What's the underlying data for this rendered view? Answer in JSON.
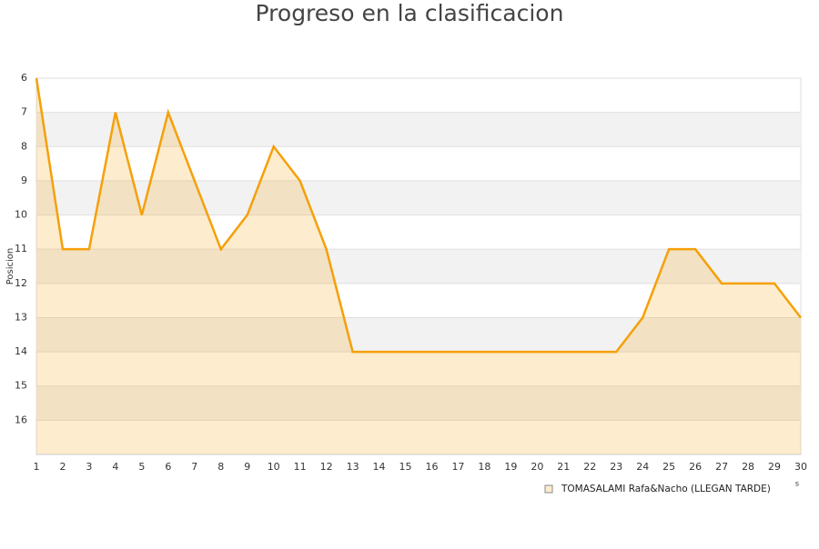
{
  "chart_data": {
    "type": "area-line",
    "title": "Progreso en la clasificacion",
    "y_label": "Posicion",
    "x_label": "s",
    "x": [
      1,
      2,
      3,
      4,
      5,
      6,
      7,
      8,
      9,
      10,
      11,
      12,
      13,
      14,
      15,
      16,
      17,
      18,
      19,
      20,
      21,
      22,
      23,
      24,
      25,
      26,
      27,
      28,
      29,
      30
    ],
    "series": [
      {
        "name": "TOMASALAMI Rafa&Nacho (LLEGAN TARDE)",
        "color": "#f5a00a",
        "values": [
          6,
          11,
          11,
          7,
          10,
          7,
          9,
          11,
          10,
          8,
          9,
          11,
          14,
          14,
          14,
          14,
          14,
          14,
          14,
          14,
          14,
          14,
          14,
          13,
          11,
          11,
          12,
          12,
          12,
          13
        ]
      }
    ],
    "xlim": [
      1,
      30
    ],
    "xticks": [
      1,
      2,
      3,
      4,
      5,
      6,
      7,
      8,
      9,
      10,
      11,
      12,
      13,
      14,
      15,
      16,
      17,
      18,
      19,
      20,
      21,
      22,
      23,
      24,
      25,
      26,
      27,
      28,
      29,
      30
    ],
    "ylim": [
      6,
      17
    ],
    "yticks": [
      6,
      7,
      8,
      9,
      10,
      11,
      12,
      13,
      14,
      15,
      16
    ],
    "y_inverted": true,
    "grid": true,
    "legend": "bottom-right"
  }
}
